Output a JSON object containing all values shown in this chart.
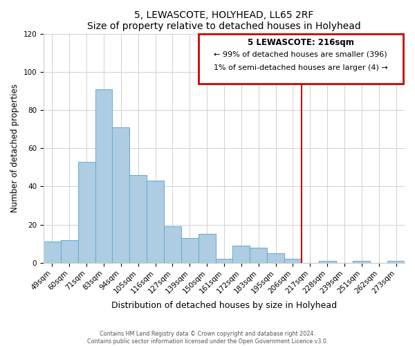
{
  "title": "5, LEWASCOTE, HOLYHEAD, LL65 2RF",
  "subtitle": "Size of property relative to detached houses in Holyhead",
  "xlabel": "Distribution of detached houses by size in Holyhead",
  "ylabel": "Number of detached properties",
  "bin_labels": [
    "49sqm",
    "60sqm",
    "71sqm",
    "83sqm",
    "94sqm",
    "105sqm",
    "116sqm",
    "127sqm",
    "139sqm",
    "150sqm",
    "161sqm",
    "172sqm",
    "183sqm",
    "195sqm",
    "206sqm",
    "217sqm",
    "228sqm",
    "239sqm",
    "251sqm",
    "262sqm",
    "273sqm"
  ],
  "bar_heights": [
    11,
    12,
    53,
    91,
    71,
    46,
    43,
    19,
    13,
    15,
    2,
    9,
    8,
    5,
    2,
    0,
    1,
    0,
    1,
    0,
    1
  ],
  "bar_color": "#aecde2",
  "bar_edge_color": "#6baed6",
  "vline_x_index": 15,
  "vline_color": "#cc0000",
  "ylim": [
    0,
    120
  ],
  "yticks": [
    0,
    20,
    40,
    60,
    80,
    100,
    120
  ],
  "annotation_title": "5 LEWASCOTE: 216sqm",
  "annotation_line1": "← 99% of detached houses are smaller (396)",
  "annotation_line2": "1% of semi-detached houses are larger (4) →",
  "annotation_box_color": "#cc0000",
  "footer_line1": "Contains HM Land Registry data © Crown copyright and database right 2024.",
  "footer_line2": "Contains public sector information licensed under the Open Government Licence v3.0."
}
